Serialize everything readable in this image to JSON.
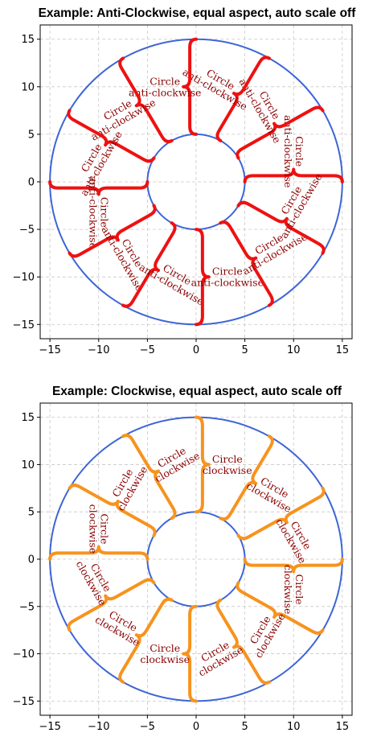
{
  "chart_data": [
    {
      "type": "annotated-circle-plot",
      "title": "Example: Anti-Clockwise, equal aspect, auto scale off",
      "xlim": [
        -16,
        16
      ],
      "ylim": [
        -16.5,
        16.5
      ],
      "xticks": [
        -15,
        -10,
        -5,
        0,
        5,
        10,
        15
      ],
      "yticks": [
        -15,
        -10,
        -5,
        0,
        5,
        10,
        15
      ],
      "xtick_labels": [
        "−15",
        "−10",
        "−5",
        "0",
        "5",
        "10",
        "15"
      ],
      "ytick_labels": [
        "−15",
        "−10",
        "−5",
        "0",
        "5",
        "10",
        "15"
      ],
      "grid": true,
      "aspect": "equal",
      "outer_circle_radius": 15,
      "inner_circle_radius": 5,
      "circle_color": "#3d65d6",
      "brace_color": "#ee1111",
      "label_color": "#8b0000",
      "direction": "anti-clockwise",
      "brace_angles_deg": [
        0,
        30,
        60,
        90,
        120,
        150,
        180,
        210,
        240,
        270,
        300,
        330
      ],
      "brace_text": "Circle\nanti-clockwise"
    },
    {
      "type": "annotated-circle-plot",
      "title": "Example: Clockwise, equal aspect, auto scale off",
      "xlim": [
        -16,
        16
      ],
      "ylim": [
        -16.5,
        16.5
      ],
      "xticks": [
        -15,
        -10,
        -5,
        0,
        5,
        10,
        15
      ],
      "yticks": [
        -15,
        -10,
        -5,
        0,
        5,
        10,
        15
      ],
      "xtick_labels": [
        "−15",
        "−10",
        "−5",
        "0",
        "5",
        "10",
        "15"
      ],
      "ytick_labels": [
        "−15",
        "−10",
        "−5",
        "0",
        "5",
        "10",
        "15"
      ],
      "grid": true,
      "aspect": "equal",
      "outer_circle_radius": 15,
      "inner_circle_radius": 5,
      "circle_color": "#3d65d6",
      "brace_color": "#f7931e",
      "label_color": "#8b0000",
      "direction": "clockwise",
      "brace_angles_deg": [
        0,
        30,
        60,
        90,
        120,
        150,
        180,
        210,
        240,
        270,
        300,
        330
      ],
      "brace_text": "Circle\nclockwise"
    }
  ]
}
